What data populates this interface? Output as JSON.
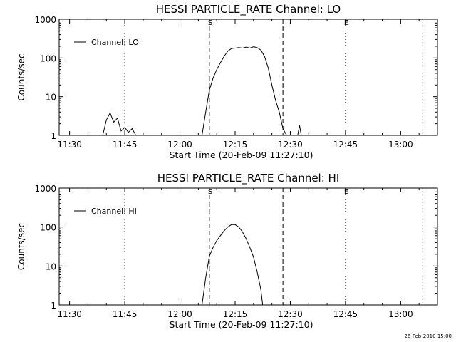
{
  "chart_data": [
    {
      "type": "line",
      "title": "HESSI PARTICLE_RATE Channel: LO",
      "xlabel": "Start Time (20-Feb-09 11:27:10)",
      "ylabel": "Counts/sec",
      "y_scale": "log",
      "ylim": [
        1,
        1000
      ],
      "xlim": [
        "11:27:10",
        "13:10:00"
      ],
      "x_ticks": [
        "11:30",
        "11:45",
        "12:00",
        "12:15",
        "12:30",
        "12:45",
        "13:00"
      ],
      "y_ticks": [
        "1",
        "10",
        "100",
        "1000"
      ],
      "legend": {
        "placement": "top-left",
        "entries": [
          "Channel: LO"
        ]
      },
      "markers": [
        {
          "label": "S",
          "time": "12:08",
          "style": "dashed"
        },
        {
          "label": "",
          "time": "12:28",
          "style": "dashed"
        },
        {
          "label": "",
          "time": "11:45",
          "style": "dotted"
        },
        {
          "label": "E",
          "time": "12:45",
          "style": "dotted"
        },
        {
          "label": "",
          "time": "13:06",
          "style": "dotted"
        }
      ],
      "series": [
        {
          "name": "Channel: LO",
          "points": [
            [
              "11:39:00",
              1
            ],
            [
              "11:40:00",
              2.5
            ],
            [
              "11:41:00",
              3.8
            ],
            [
              "11:42:00",
              2.2
            ],
            [
              "11:43:00",
              2.8
            ],
            [
              "11:44:00",
              1.3
            ],
            [
              "11:45:00",
              1.6
            ],
            [
              "11:46:00",
              1.2
            ],
            [
              "11:47:00",
              1.5
            ],
            [
              "11:48:00",
              1
            ],
            [
              "12:06:00",
              1
            ],
            [
              "12:07:00",
              4
            ],
            [
              "12:08:00",
              15
            ],
            [
              "12:09:00",
              30
            ],
            [
              "12:10:00",
              50
            ],
            [
              "12:11:00",
              75
            ],
            [
              "12:12:00",
              110
            ],
            [
              "12:13:00",
              150
            ],
            [
              "12:14:00",
              175
            ],
            [
              "12:15:00",
              180
            ],
            [
              "12:16:00",
              185
            ],
            [
              "12:17:00",
              180
            ],
            [
              "12:18:00",
              190
            ],
            [
              "12:19:00",
              180
            ],
            [
              "12:20:00",
              195
            ],
            [
              "12:21:00",
              185
            ],
            [
              "12:22:00",
              160
            ],
            [
              "12:23:00",
              110
            ],
            [
              "12:24:00",
              55
            ],
            [
              "12:25:00",
              20
            ],
            [
              "12:26:00",
              8
            ],
            [
              "12:27:00",
              4
            ],
            [
              "12:28:00",
              1.5
            ],
            [
              "12:29:00",
              1
            ],
            [
              "12:32:00",
              1
            ],
            [
              "12:32:30",
              1.8
            ],
            [
              "12:33:00",
              1
            ]
          ]
        }
      ]
    },
    {
      "type": "line",
      "title": "HESSI PARTICLE_RATE Channel: HI",
      "xlabel": "Start Time (20-Feb-09 11:27:10)",
      "ylabel": "Counts/sec",
      "y_scale": "log",
      "ylim": [
        1,
        1000
      ],
      "xlim": [
        "11:27:10",
        "13:10:00"
      ],
      "x_ticks": [
        "11:30",
        "11:45",
        "12:00",
        "12:15",
        "12:30",
        "12:45",
        "13:00"
      ],
      "y_ticks": [
        "1",
        "10",
        "100",
        "1000"
      ],
      "legend": {
        "placement": "top-left",
        "entries": [
          "Channel: HI"
        ]
      },
      "markers": [
        {
          "label": "S",
          "time": "12:08",
          "style": "dashed"
        },
        {
          "label": "",
          "time": "12:28",
          "style": "dashed"
        },
        {
          "label": "",
          "time": "11:45",
          "style": "dotted"
        },
        {
          "label": "E",
          "time": "12:45",
          "style": "dotted"
        },
        {
          "label": "",
          "time": "13:06",
          "style": "dotted"
        }
      ],
      "series": [
        {
          "name": "Channel: HI",
          "points": [
            [
              "12:06:00",
              1
            ],
            [
              "12:07:00",
              5
            ],
            [
              "12:08:00",
              18
            ],
            [
              "12:09:00",
              30
            ],
            [
              "12:10:00",
              45
            ],
            [
              "12:11:00",
              60
            ],
            [
              "12:12:00",
              80
            ],
            [
              "12:13:00",
              100
            ],
            [
              "12:14:00",
              115
            ],
            [
              "12:15:00",
              115
            ],
            [
              "12:16:00",
              100
            ],
            [
              "12:17:00",
              75
            ],
            [
              "12:18:00",
              50
            ],
            [
              "12:19:00",
              30
            ],
            [
              "12:20:00",
              17
            ],
            [
              "12:21:00",
              7
            ],
            [
              "12:22:00",
              2.5
            ],
            [
              "12:22:30",
              1
            ]
          ]
        }
      ]
    }
  ],
  "footer": {
    "timestamp": "26-Feb-2010 15:00"
  }
}
